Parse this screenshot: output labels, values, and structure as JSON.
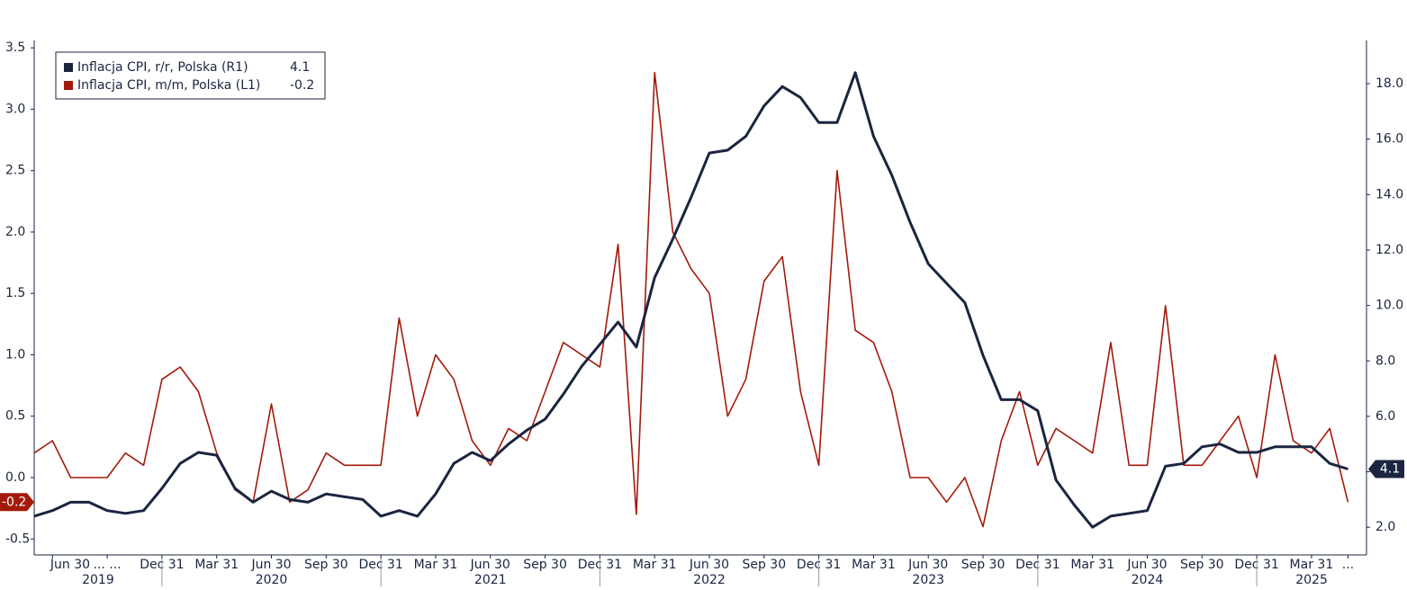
{
  "chart_data": {
    "type": "line",
    "categories": [
      null,
      "Jun 30",
      null,
      null,
      "... ...",
      null,
      null,
      "Dec 31",
      null,
      null,
      "Mar 31",
      null,
      null,
      "Jun 30",
      null,
      null,
      "Sep 30",
      null,
      null,
      "Dec 31",
      null,
      null,
      "Mar 31",
      null,
      null,
      "Jun 30",
      null,
      null,
      "Sep 30",
      null,
      null,
      "Dec 31",
      null,
      null,
      "Mar 31",
      null,
      null,
      "Jun 30",
      null,
      null,
      "Sep 30",
      null,
      null,
      "Dec 31",
      null,
      null,
      "Mar 31",
      null,
      null,
      "Jun 30",
      null,
      null,
      "Sep 30",
      null,
      null,
      "Dec 31",
      null,
      null,
      "Mar 31",
      null,
      null,
      "Jun 30",
      null,
      null,
      "Sep 30",
      null,
      null,
      "Dec 31",
      null,
      null,
      "Mar 31",
      null,
      "..."
    ],
    "years": [
      "2019",
      "2020",
      "2021",
      "2022",
      "2023",
      "2024",
      "2025"
    ],
    "series": [
      {
        "name": "Inflacja CPI, r/r, Polska (R1)",
        "color": "#1b2540",
        "axis": "y2",
        "values": [
          2.4,
          2.6,
          2.9,
          2.9,
          2.6,
          2.5,
          2.6,
          3.4,
          4.3,
          4.7,
          4.6,
          3.4,
          2.9,
          3.3,
          3.0,
          2.9,
          3.2,
          3.1,
          3.0,
          2.4,
          2.6,
          2.4,
          3.2,
          4.3,
          4.7,
          4.4,
          5.0,
          5.5,
          5.9,
          6.8,
          7.8,
          8.6,
          9.4,
          8.5,
          11.0,
          12.4,
          13.9,
          15.5,
          15.6,
          16.1,
          17.2,
          17.9,
          17.5,
          16.6,
          16.6,
          18.4,
          16.1,
          14.7,
          13.0,
          11.5,
          10.8,
          10.1,
          8.2,
          6.6,
          6.6,
          6.2,
          3.7,
          2.8,
          2.0,
          2.4,
          2.5,
          2.6,
          4.2,
          4.3,
          4.9,
          5.0,
          4.7,
          4.7,
          4.9,
          4.9,
          4.9,
          4.3,
          4.1
        ]
      },
      {
        "name": "Inflacja CPI, m/m, Polska (L1)",
        "color": "#a31a0b",
        "axis": "y",
        "values": [
          0.2,
          0.3,
          0.0,
          0.0,
          0.0,
          0.2,
          0.1,
          0.8,
          0.9,
          0.7,
          0.2,
          -0.1,
          -0.2,
          0.6,
          -0.2,
          -0.1,
          0.2,
          0.1,
          0.1,
          0.1,
          1.3,
          0.5,
          1.0,
          0.8,
          0.3,
          0.1,
          0.4,
          0.3,
          0.7,
          1.1,
          1.0,
          0.9,
          1.9,
          -0.3,
          3.3,
          2.0,
          1.7,
          1.5,
          0.5,
          0.8,
          1.6,
          1.8,
          0.7,
          0.1,
          2.5,
          1.2,
          1.1,
          0.7,
          0.0,
          0.0,
          -0.2,
          0.0,
          -0.4,
          0.3,
          0.7,
          0.1,
          0.4,
          0.3,
          0.2,
          1.1,
          0.1,
          0.1,
          1.4,
          0.1,
          0.1,
          0.3,
          0.5,
          0.0,
          1.0,
          0.3,
          0.2,
          0.4,
          -0.2
        ]
      }
    ],
    "ylim": [
      -0.63,
      3.56
    ],
    "yticks": [
      -0.5,
      {
        "value": 0,
        "label": "0.0"
      },
      0.5,
      {
        "value": 1,
        "label": "1.0"
      },
      1.5,
      {
        "value": 2,
        "label": "2.0"
      },
      2.5,
      {
        "value": 3,
        "label": "3.0"
      },
      3.5
    ],
    "y2lim": [
      1.0,
      19.56
    ],
    "y2ticks": [
      {
        "value": 2,
        "label": "2.0"
      },
      {
        "value": 4,
        "label": "4.0"
      },
      {
        "value": 6,
        "label": "6.0"
      },
      {
        "value": 8,
        "label": "8.0"
      },
      {
        "value": 10,
        "label": "10.0"
      },
      {
        "value": 12,
        "label": "12.0"
      },
      {
        "value": 14,
        "label": "14.0"
      },
      {
        "value": 16,
        "label": "16.0"
      },
      {
        "value": 18,
        "label": "18.0"
      }
    ],
    "grid": false,
    "legend": "upper left"
  }
}
